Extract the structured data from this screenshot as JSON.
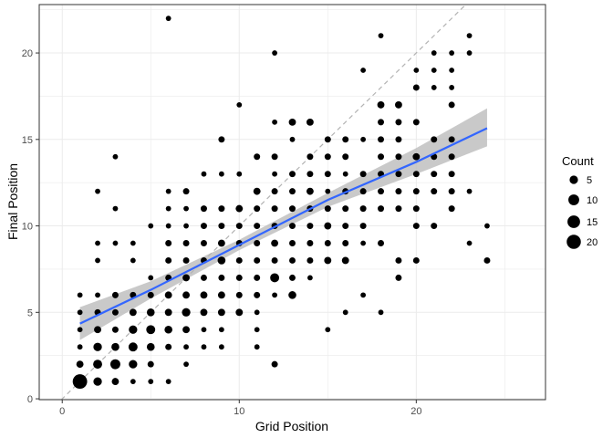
{
  "chart_data": {
    "type": "scatter",
    "title": "",
    "xlabel": "Grid Position",
    "ylabel": "Final Position",
    "xlim": [
      -1.3,
      27.3
    ],
    "ylim": [
      -0.05,
      22.8
    ],
    "xticks": [
      0,
      10,
      20
    ],
    "yticks": [
      0,
      5,
      10,
      15,
      20
    ],
    "grid": true,
    "legend": {
      "title": "Count",
      "placement": "right",
      "sizes": [
        5,
        10,
        15,
        20
      ]
    },
    "reference_line": {
      "slope": 1,
      "intercept": 0,
      "style": "dashed",
      "color": "#b3b3b3"
    },
    "trend": {
      "method": "linear",
      "color": "#3366ff",
      "band_color": "#bfbfbf",
      "points": [
        {
          "x": 1,
          "y": 4.35,
          "lo": 3.4,
          "hi": 5.3
        },
        {
          "x": 5,
          "y": 6.3,
          "lo": 5.8,
          "hi": 6.8
        },
        {
          "x": 10,
          "y": 8.9,
          "lo": 8.6,
          "hi": 9.2
        },
        {
          "x": 15,
          "y": 11.5,
          "lo": 11.1,
          "hi": 11.9
        },
        {
          "x": 20,
          "y": 13.7,
          "lo": 13.0,
          "hi": 14.5
        },
        {
          "x": 24,
          "y": 15.65,
          "lo": 14.6,
          "hi": 16.8
        }
      ]
    },
    "points": [
      [
        1,
        1,
        21
      ],
      [
        1,
        2,
        3
      ],
      [
        1,
        3,
        1
      ],
      [
        1,
        4,
        1
      ],
      [
        1,
        5,
        1
      ],
      [
        1,
        6,
        1
      ],
      [
        2,
        1,
        5
      ],
      [
        2,
        2,
        6
      ],
      [
        2,
        3,
        5
      ],
      [
        2,
        4,
        3
      ],
      [
        2,
        5,
        2
      ],
      [
        2,
        6,
        1
      ],
      [
        2,
        8,
        1
      ],
      [
        2,
        9,
        1
      ],
      [
        2,
        12,
        1
      ],
      [
        3,
        1,
        3
      ],
      [
        3,
        2,
        8
      ],
      [
        3,
        3,
        4
      ],
      [
        3,
        4,
        2
      ],
      [
        3,
        5,
        2
      ],
      [
        3,
        6,
        2
      ],
      [
        3,
        9,
        1
      ],
      [
        3,
        11,
        1
      ],
      [
        3,
        14,
        1
      ],
      [
        4,
        1,
        1
      ],
      [
        4,
        2,
        5
      ],
      [
        4,
        3,
        6
      ],
      [
        4,
        4,
        5
      ],
      [
        4,
        5,
        3
      ],
      [
        4,
        6,
        2
      ],
      [
        4,
        8,
        1
      ],
      [
        4,
        9,
        1
      ],
      [
        5,
        1,
        1
      ],
      [
        5,
        2,
        2
      ],
      [
        5,
        3,
        4
      ],
      [
        5,
        4,
        6
      ],
      [
        5,
        5,
        4
      ],
      [
        5,
        6,
        2
      ],
      [
        5,
        7,
        1
      ],
      [
        5,
        10,
        1
      ],
      [
        6,
        1,
        1
      ],
      [
        6,
        3,
        2
      ],
      [
        6,
        4,
        4
      ],
      [
        6,
        5,
        3
      ],
      [
        6,
        6,
        3
      ],
      [
        6,
        7,
        2
      ],
      [
        6,
        8,
        2
      ],
      [
        6,
        9,
        2
      ],
      [
        6,
        10,
        1
      ],
      [
        6,
        11,
        1
      ],
      [
        6,
        12,
        1
      ],
      [
        6,
        22,
        1
      ],
      [
        7,
        2,
        1
      ],
      [
        7,
        3,
        1
      ],
      [
        7,
        4,
        3
      ],
      [
        7,
        5,
        5
      ],
      [
        7,
        6,
        3
      ],
      [
        7,
        7,
        3
      ],
      [
        7,
        8,
        2
      ],
      [
        7,
        9,
        2
      ],
      [
        7,
        10,
        1
      ],
      [
        7,
        11,
        1
      ],
      [
        7,
        12,
        2
      ],
      [
        8,
        3,
        1
      ],
      [
        8,
        4,
        1
      ],
      [
        8,
        5,
        3
      ],
      [
        8,
        6,
        3
      ],
      [
        8,
        7,
        2
      ],
      [
        8,
        8,
        2
      ],
      [
        8,
        9,
        2
      ],
      [
        8,
        10,
        2
      ],
      [
        8,
        11,
        2
      ],
      [
        8,
        13,
        1
      ],
      [
        9,
        3,
        1
      ],
      [
        9,
        4,
        1
      ],
      [
        9,
        5,
        3
      ],
      [
        9,
        6,
        3
      ],
      [
        9,
        7,
        2
      ],
      [
        9,
        8,
        4
      ],
      [
        9,
        9,
        3
      ],
      [
        9,
        10,
        2
      ],
      [
        9,
        11,
        2
      ],
      [
        9,
        13,
        1
      ],
      [
        9,
        15,
        2
      ],
      [
        10,
        5,
        3
      ],
      [
        10,
        6,
        2
      ],
      [
        10,
        7,
        2
      ],
      [
        10,
        8,
        2
      ],
      [
        10,
        9,
        2
      ],
      [
        10,
        10,
        2
      ],
      [
        10,
        11,
        3
      ],
      [
        10,
        13,
        1
      ],
      [
        10,
        17,
        1
      ],
      [
        11,
        3,
        1
      ],
      [
        11,
        4,
        1
      ],
      [
        11,
        5,
        1
      ],
      [
        11,
        6,
        2
      ],
      [
        11,
        7,
        2
      ],
      [
        11,
        8,
        2
      ],
      [
        11,
        9,
        2
      ],
      [
        11,
        10,
        2
      ],
      [
        11,
        11,
        2
      ],
      [
        11,
        12,
        3
      ],
      [
        11,
        14,
        2
      ],
      [
        12,
        2,
        2
      ],
      [
        12,
        6,
        1
      ],
      [
        12,
        7,
        6
      ],
      [
        12,
        8,
        2
      ],
      [
        12,
        9,
        3
      ],
      [
        12,
        10,
        2
      ],
      [
        12,
        11,
        2
      ],
      [
        12,
        12,
        2
      ],
      [
        12,
        13,
        1
      ],
      [
        12,
        14,
        2
      ],
      [
        12,
        16,
        1
      ],
      [
        12,
        20,
        1
      ],
      [
        13,
        6,
        4
      ],
      [
        13,
        7,
        2
      ],
      [
        13,
        8,
        2
      ],
      [
        13,
        9,
        2
      ],
      [
        13,
        10,
        2
      ],
      [
        13,
        11,
        2
      ],
      [
        13,
        12,
        2
      ],
      [
        13,
        13,
        2
      ],
      [
        13,
        15,
        1
      ],
      [
        13,
        16,
        3
      ],
      [
        14,
        7,
        1
      ],
      [
        14,
        8,
        2
      ],
      [
        14,
        9,
        2
      ],
      [
        14,
        10,
        2
      ],
      [
        14,
        11,
        2
      ],
      [
        14,
        12,
        3
      ],
      [
        14,
        13,
        2
      ],
      [
        14,
        14,
        2
      ],
      [
        14,
        16,
        3
      ],
      [
        15,
        4,
        1
      ],
      [
        15,
        8,
        3
      ],
      [
        15,
        9,
        2
      ],
      [
        15,
        10,
        3
      ],
      [
        15,
        11,
        2
      ],
      [
        15,
        12,
        1
      ],
      [
        15,
        13,
        2
      ],
      [
        15,
        14,
        2
      ],
      [
        15,
        15,
        2
      ],
      [
        16,
        5,
        1
      ],
      [
        16,
        8,
        3
      ],
      [
        16,
        9,
        2
      ],
      [
        16,
        10,
        2
      ],
      [
        16,
        11,
        2
      ],
      [
        16,
        12,
        2
      ],
      [
        16,
        13,
        1
      ],
      [
        16,
        14,
        2
      ],
      [
        16,
        15,
        2
      ],
      [
        17,
        6,
        1
      ],
      [
        17,
        9,
        1
      ],
      [
        17,
        10,
        2
      ],
      [
        17,
        11,
        2
      ],
      [
        17,
        12,
        2
      ],
      [
        17,
        13,
        2
      ],
      [
        17,
        15,
        1
      ],
      [
        17,
        19,
        1
      ],
      [
        18,
        5,
        1
      ],
      [
        18,
        9,
        2
      ],
      [
        18,
        11,
        2
      ],
      [
        18,
        12,
        2
      ],
      [
        18,
        13,
        2
      ],
      [
        18,
        14,
        2
      ],
      [
        18,
        15,
        2
      ],
      [
        18,
        16,
        2
      ],
      [
        18,
        17,
        3
      ],
      [
        18,
        21,
        1
      ],
      [
        19,
        7,
        2
      ],
      [
        19,
        8,
        2
      ],
      [
        19,
        11,
        2
      ],
      [
        19,
        12,
        2
      ],
      [
        19,
        13,
        2
      ],
      [
        19,
        14,
        2
      ],
      [
        19,
        15,
        2
      ],
      [
        19,
        16,
        2
      ],
      [
        19,
        17,
        3
      ],
      [
        20,
        8,
        2
      ],
      [
        20,
        10,
        2
      ],
      [
        20,
        11,
        2
      ],
      [
        20,
        12,
        2
      ],
      [
        20,
        13,
        2
      ],
      [
        20,
        14,
        3
      ],
      [
        20,
        16,
        2
      ],
      [
        20,
        18,
        2
      ],
      [
        20,
        19,
        1
      ],
      [
        21,
        10,
        2
      ],
      [
        21,
        12,
        2
      ],
      [
        21,
        13,
        2
      ],
      [
        21,
        14,
        2
      ],
      [
        21,
        15,
        2
      ],
      [
        21,
        18,
        1
      ],
      [
        21,
        19,
        1
      ],
      [
        21,
        20,
        1
      ],
      [
        22,
        11,
        2
      ],
      [
        22,
        12,
        2
      ],
      [
        22,
        13,
        2
      ],
      [
        22,
        14,
        2
      ],
      [
        22,
        15,
        2
      ],
      [
        22,
        17,
        2
      ],
      [
        22,
        18,
        1
      ],
      [
        22,
        19,
        1
      ],
      [
        22,
        20,
        1
      ],
      [
        23,
        9,
        1
      ],
      [
        23,
        12,
        1
      ],
      [
        23,
        20,
        1
      ],
      [
        23,
        21,
        1
      ],
      [
        24,
        8,
        2
      ],
      [
        24,
        10,
        1
      ]
    ]
  }
}
